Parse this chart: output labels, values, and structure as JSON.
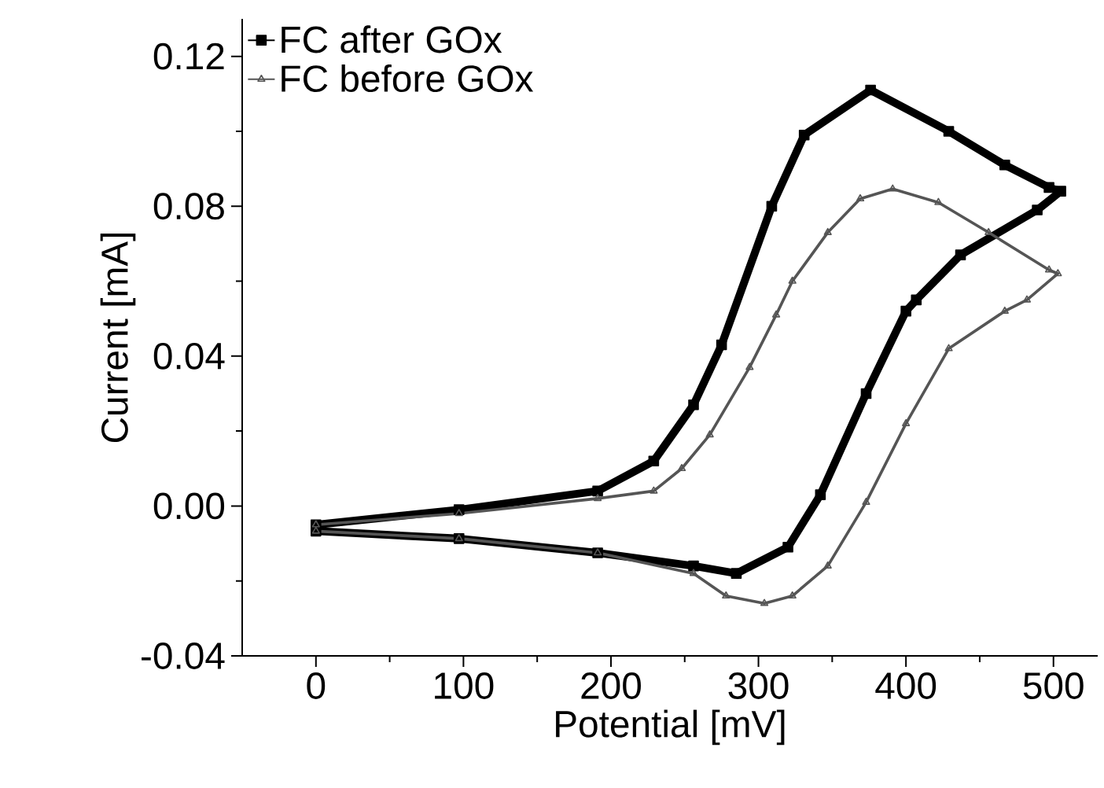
{
  "chart_data": {
    "type": "line",
    "xlabel": "Potential [mV]",
    "ylabel": "Current [mA]",
    "xlim": [
      -50,
      530
    ],
    "ylim": [
      -0.04,
      0.13
    ],
    "xticks": [
      0,
      100,
      200,
      300,
      400,
      500
    ],
    "yticks": [
      -0.04,
      {
        "value": 0,
        "label": "0.00"
      },
      0.04,
      0.08,
      0.12
    ],
    "legend": "top left",
    "grid": false,
    "line_style": "solid",
    "series": [
      {
        "name": "FC after GOx",
        "color": "#000000",
        "marker": "square",
        "x": [
          0,
          97,
          191,
          229,
          256,
          275,
          309,
          331,
          376,
          429,
          467,
          497,
          505,
          489,
          437,
          407,
          400,
          373,
          342,
          320,
          285,
          256,
          191,
          97,
          0
        ],
        "values": [
          -0.005,
          -0.001,
          0.004,
          0.012,
          0.027,
          0.043,
          0.08,
          0.099,
          0.111,
          0.1,
          0.091,
          0.085,
          0.084,
          0.079,
          0.067,
          0.055,
          0.052,
          0.03,
          0.003,
          -0.011,
          -0.018,
          -0.016,
          -0.0125,
          -0.0087,
          -0.0067
        ]
      },
      {
        "name": "FC before GOx",
        "color": "#555555",
        "marker": "triangle",
        "x": [
          0,
          97,
          191,
          229,
          248,
          267,
          294,
          312,
          323,
          347,
          369,
          391,
          422,
          456,
          497,
          503,
          482,
          467,
          429,
          400,
          373,
          347,
          323,
          304,
          278,
          256,
          191,
          97,
          0
        ],
        "values": [
          -0.005,
          -0.002,
          0.002,
          0.004,
          0.01,
          0.019,
          0.037,
          0.051,
          0.06,
          0.073,
          0.082,
          0.0846,
          0.081,
          0.073,
          0.063,
          0.062,
          0.055,
          0.052,
          0.042,
          0.022,
          0.001,
          -0.016,
          -0.024,
          -0.026,
          -0.024,
          -0.018,
          -0.0125,
          -0.0087,
          -0.0067
        ]
      }
    ]
  }
}
